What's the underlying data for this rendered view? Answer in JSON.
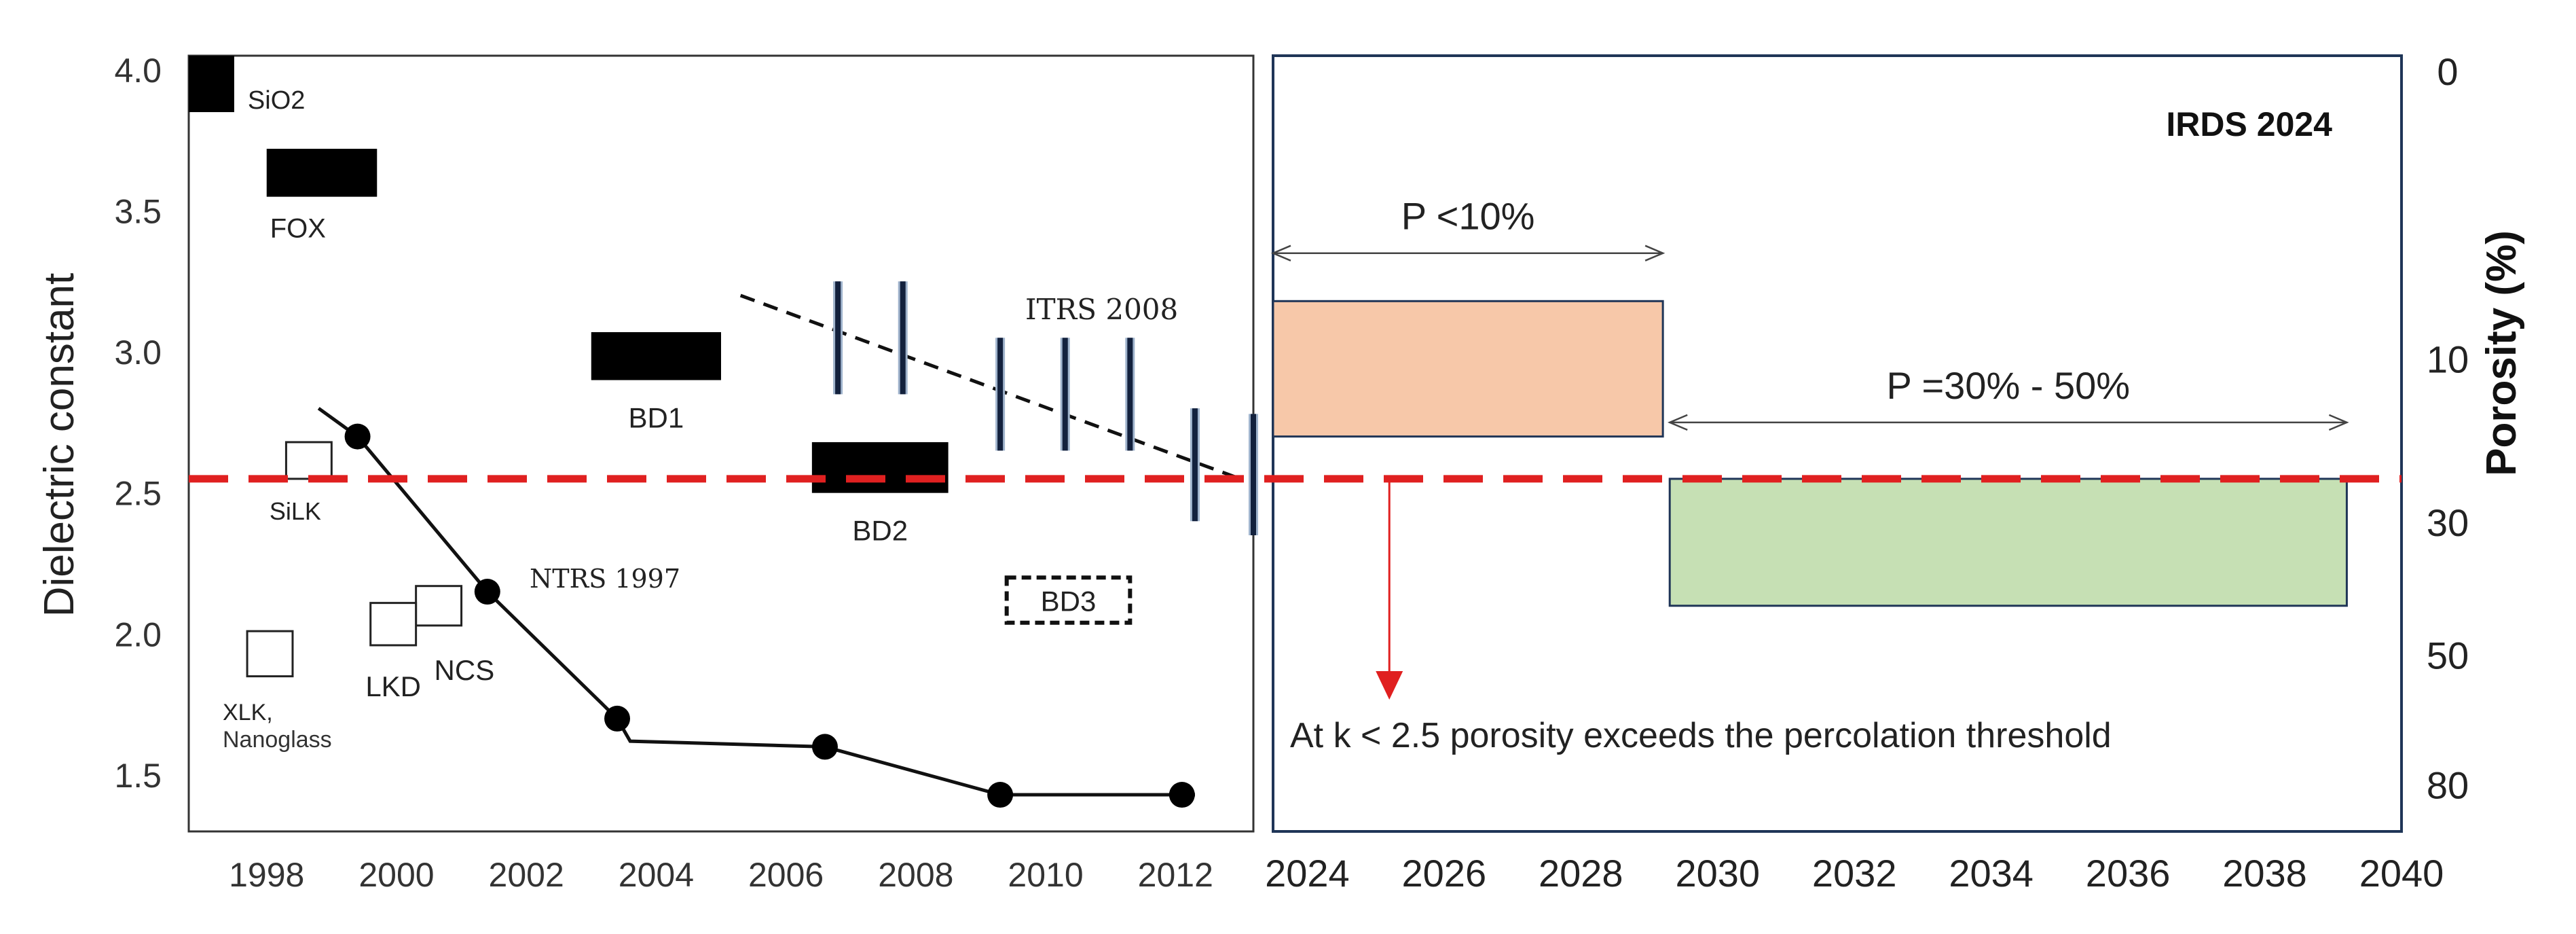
{
  "chart_data": {
    "type": "composite",
    "left_panel": {
      "x_range": [
        1996.8,
        2013.2
      ],
      "y_range": [
        1.3,
        4.05
      ],
      "ylabel": "Dielectric constant",
      "xticks": [
        1998,
        2000,
        2002,
        2004,
        2006,
        2008,
        2010,
        2012
      ],
      "yticks": [
        1.5,
        2.0,
        2.5,
        3.0,
        3.5,
        4.0
      ],
      "materials": [
        {
          "label": "SiO2",
          "style": "filled",
          "x": [
            1996.8,
            1997.5
          ],
          "k": [
            3.85,
            4.05
          ]
        },
        {
          "label": "FOX",
          "style": "filled",
          "x": [
            1998.0,
            1999.7
          ],
          "k": [
            3.55,
            3.72
          ]
        },
        {
          "label": "BD1",
          "style": "filled",
          "x": [
            2003.0,
            2005.0
          ],
          "k": [
            2.9,
            3.07
          ]
        },
        {
          "label": "BD2",
          "style": "filled",
          "x": [
            2006.4,
            2008.5
          ],
          "k": [
            2.5,
            2.68
          ]
        },
        {
          "label": "BD3",
          "style": "dashed",
          "x": [
            2009.4,
            2011.3
          ],
          "k": [
            2.04,
            2.2
          ]
        },
        {
          "label": "SiLK",
          "style": "open",
          "x": [
            1998.3,
            1999.0
          ],
          "k": [
            2.55,
            2.68
          ]
        },
        {
          "label": "NCS",
          "style": "open",
          "x": [
            2000.3,
            2001.0
          ],
          "k": [
            2.03,
            2.17
          ]
        },
        {
          "label": "LKD",
          "style": "open",
          "x": [
            1999.6,
            2000.3
          ],
          "k": [
            1.96,
            2.11
          ]
        },
        {
          "label": "XLK,",
          "style": "open",
          "x": [
            1997.7,
            1998.4
          ],
          "k": [
            1.85,
            2.01
          ]
        }
      ],
      "xlk_label_line2": "Nanoglass",
      "ntrs_1997": {
        "label": "NTRS 1997",
        "line": [
          [
            1998.8,
            2.8
          ],
          [
            1999.4,
            2.7
          ],
          [
            2001.4,
            2.15
          ],
          [
            2003.4,
            1.7
          ],
          [
            2003.6,
            1.62
          ],
          [
            2006.6,
            1.6
          ],
          [
            2009.3,
            1.43
          ],
          [
            2012.3,
            1.43
          ]
        ],
        "points": [
          [
            1999.4,
            2.7
          ],
          [
            2001.4,
            2.15
          ],
          [
            2003.4,
            1.7
          ],
          [
            2006.6,
            1.6
          ],
          [
            2009.3,
            1.43
          ],
          [
            2012.1,
            1.43
          ]
        ]
      },
      "itrs_2008": {
        "label": "ITRS 2008",
        "trend": [
          [
            2005.3,
            3.2
          ],
          [
            2013.0,
            2.55
          ]
        ],
        "bars": [
          {
            "x": 2006.8,
            "k": [
              2.85,
              3.25
            ]
          },
          {
            "x": 2007.8,
            "k": [
              2.85,
              3.25
            ]
          },
          {
            "x": 2009.3,
            "k": [
              2.65,
              3.05
            ]
          },
          {
            "x": 2010.3,
            "k": [
              2.65,
              3.05
            ]
          },
          {
            "x": 2011.3,
            "k": [
              2.65,
              3.05
            ]
          },
          {
            "x": 2012.3,
            "k": [
              2.4,
              2.8
            ]
          },
          {
            "x": 2013.2,
            "k": [
              2.35,
              2.78
            ]
          }
        ]
      }
    },
    "right_panel": {
      "title": "IRDS 2024",
      "x_range": [
        2023.5,
        2040
      ],
      "xticks": [
        2024,
        2026,
        2028,
        2030,
        2032,
        2034,
        2036,
        2038,
        2040
      ],
      "ylabel": "Porosity (%)",
      "porosity_ticks": [
        {
          "label": "0",
          "k": 4.0
        },
        {
          "label": "10",
          "k": 2.98
        },
        {
          "label": "30",
          "k": 2.4
        },
        {
          "label": "50",
          "k": 1.93
        },
        {
          "label": "80",
          "k": 1.47
        }
      ],
      "regions": [
        {
          "label": "P <10%",
          "x": [
            2023.5,
            2029.2
          ],
          "k": [
            2.7,
            3.18
          ],
          "color": "#f7c8a9"
        },
        {
          "label": "P =30% - 50%",
          "x": [
            2029.3,
            2039.2
          ],
          "k": [
            2.1,
            2.55
          ],
          "color": "#c6e0b4"
        }
      ],
      "annotation": "At k < 2.5 porosity exceeds the percolation threshold",
      "arrow_x": 2025.2
    },
    "threshold": {
      "k": 2.55,
      "color": "#e02020"
    }
  }
}
